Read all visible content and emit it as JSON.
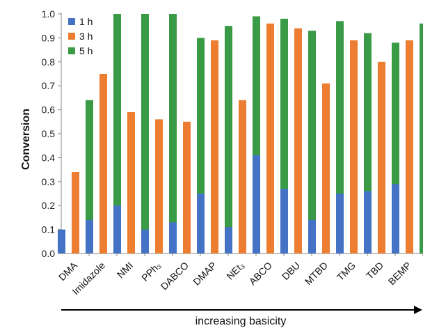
{
  "chart_data": {
    "type": "bar",
    "ylabel": "Conversion",
    "xlabel": "",
    "ylim": [
      0,
      1.0
    ],
    "yticks": [
      "0.0",
      "0.1",
      "0.2",
      "0.3",
      "0.4",
      "0.5",
      "0.6",
      "0.7",
      "0.8",
      "0.9",
      "1.0"
    ],
    "categories": [
      "DMA",
      "Imidazole",
      "NMI",
      "PPh₃",
      "DABCO",
      "DMAP",
      "NEt₃",
      "ABCO",
      "DBU",
      "MTBD",
      "TMG",
      "TBD",
      "BEMP"
    ],
    "series": [
      {
        "name": "1 h",
        "color": "#4472c4",
        "values": [
          0.1,
          0.14,
          0.2,
          0.1,
          0.13,
          0.25,
          0.11,
          0.41,
          0.27,
          0.14,
          0.25,
          0.26,
          0.29
        ]
      },
      {
        "name": "3 h",
        "color": "#ed7d31",
        "values": [
          0.34,
          0.75,
          0.59,
          0.56,
          0.55,
          0.89,
          0.64,
          0.96,
          0.94,
          0.71,
          0.89,
          0.8,
          0.89
        ]
      },
      {
        "name": "5 h",
        "color": "#3a9b46",
        "values": [
          0.64,
          1.0,
          1.0,
          1.0,
          0.9,
          0.95,
          0.99,
          0.98,
          0.93,
          0.97,
          0.92,
          0.88,
          0.96
        ]
      }
    ],
    "legend": "top-left",
    "grid": false,
    "annotation": "increasing basicity"
  }
}
